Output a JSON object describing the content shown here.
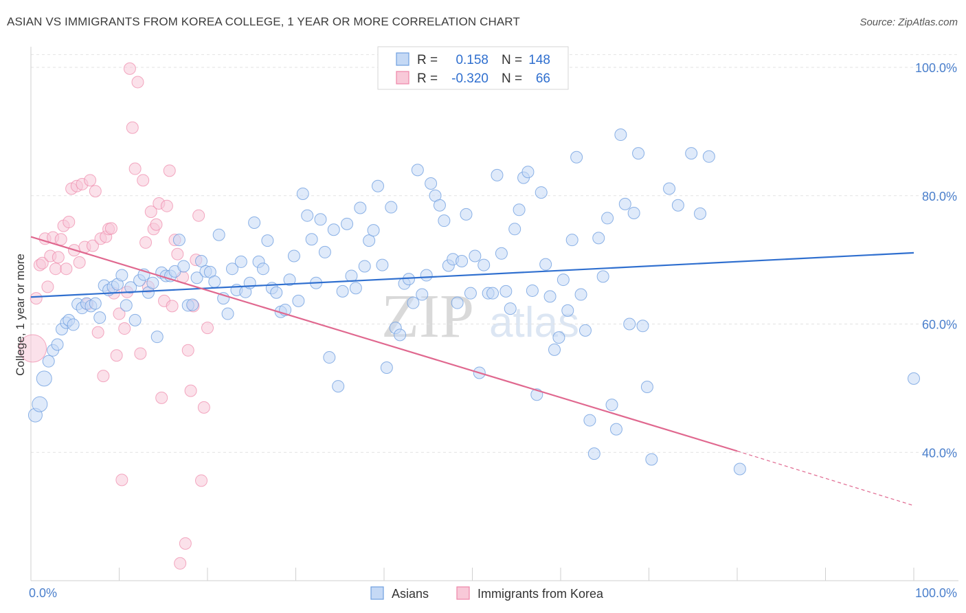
{
  "title": "ASIAN VS IMMIGRANTS FROM KOREA COLLEGE, 1 YEAR OR MORE CORRELATION CHART",
  "source": "Source: ZipAtlas.com",
  "watermark": {
    "zip": "ZIP",
    "atlas": "atlas"
  },
  "colors": {
    "asians": "#6f9fe0",
    "asians_fill": "#c5d9f5",
    "korea": "#ee86a8",
    "korea_fill": "#f8c9d8",
    "asians_line": "#2f6fcf",
    "korea_line": "#e0688f",
    "axis_text": "#4a7fcc"
  },
  "stats_legend": {
    "rows": [
      {
        "r_label": "R =",
        "r_value": "0.158",
        "n_label": "N =",
        "n_value": "148"
      },
      {
        "r_label": "R =",
        "r_value": "-0.320",
        "n_label": "N =",
        "n_value": "66"
      }
    ]
  },
  "chart_data": {
    "type": "scatter",
    "title": "ASIAN VS IMMIGRANTS FROM KOREA COLLEGE, 1 YEAR OR MORE CORRELATION CHART",
    "xlabel": "",
    "ylabel": "College, 1 year or more",
    "xlim": [
      0,
      100
    ],
    "ylim": [
      20,
      102
    ],
    "x_tick_labels": [
      "0.0%",
      "100.0%"
    ],
    "y_ticks": [
      40,
      60,
      80,
      100
    ],
    "y_tick_labels": [
      "40.0%",
      "60.0%",
      "80.0%",
      "100.0%"
    ],
    "grid": "horizontal dashed",
    "legend_position": "bottom-center",
    "series": [
      {
        "name": "Asians",
        "r": 0.158,
        "n": 148,
        "trend": {
          "x": [
            0,
            100
          ],
          "y": [
            64.2,
            71.1
          ]
        },
        "points": [
          [
            0.5,
            45.8
          ],
          [
            1,
            47.5
          ],
          [
            1.5,
            51.5
          ],
          [
            2,
            54.2
          ],
          [
            2.5,
            55.9
          ],
          [
            3,
            56.8
          ],
          [
            3.5,
            59.2
          ],
          [
            4,
            60.2
          ],
          [
            4.3,
            60.6
          ],
          [
            4.8,
            59.9
          ],
          [
            5.3,
            63.1
          ],
          [
            5.8,
            62.5
          ],
          [
            6.3,
            63.2
          ],
          [
            6.8,
            62.8
          ],
          [
            7.3,
            63.2
          ],
          [
            7.8,
            61.0
          ],
          [
            8.3,
            66.0
          ],
          [
            8.8,
            65.3
          ],
          [
            9.3,
            65.8
          ],
          [
            9.8,
            66.2
          ],
          [
            10.3,
            67.6
          ],
          [
            10.8,
            62.9
          ],
          [
            11.3,
            65.7
          ],
          [
            11.8,
            60.6
          ],
          [
            12.3,
            66.8
          ],
          [
            12.8,
            67.7
          ],
          [
            13.3,
            64.9
          ],
          [
            13.8,
            66.4
          ],
          [
            14.3,
            58.0
          ],
          [
            14.8,
            68.0
          ],
          [
            15.3,
            67.5
          ],
          [
            15.8,
            67.5
          ],
          [
            16.3,
            68.2
          ],
          [
            16.8,
            73.1
          ],
          [
            17.3,
            69.0
          ],
          [
            17.8,
            62.9
          ],
          [
            18.3,
            63.0
          ],
          [
            18.8,
            67.2
          ],
          [
            19.3,
            69.8
          ],
          [
            19.8,
            68.2
          ],
          [
            20.3,
            68.1
          ],
          [
            20.8,
            66.6
          ],
          [
            21.3,
            73.9
          ],
          [
            21.8,
            64.0
          ],
          [
            22.3,
            61.6
          ],
          [
            22.8,
            68.6
          ],
          [
            23.3,
            65.3
          ],
          [
            23.8,
            69.7
          ],
          [
            24.3,
            65.0
          ],
          [
            24.8,
            66.4
          ],
          [
            25.3,
            75.8
          ],
          [
            25.8,
            69.7
          ],
          [
            26.3,
            68.6
          ],
          [
            26.8,
            73.0
          ],
          [
            27.3,
            65.6
          ],
          [
            27.8,
            64.9
          ],
          [
            28.3,
            61.9
          ],
          [
            28.8,
            62.2
          ],
          [
            29.3,
            66.9
          ],
          [
            29.8,
            70.6
          ],
          [
            30.3,
            63.6
          ],
          [
            30.8,
            80.3
          ],
          [
            31.3,
            76.9
          ],
          [
            31.8,
            73.2
          ],
          [
            32.3,
            66.4
          ],
          [
            32.8,
            76.3
          ],
          [
            33.3,
            71.2
          ],
          [
            33.8,
            54.8
          ],
          [
            34.3,
            74.7
          ],
          [
            34.8,
            50.3
          ],
          [
            35.3,
            65.1
          ],
          [
            35.8,
            75.6
          ],
          [
            36.3,
            67.5
          ],
          [
            36.8,
            65.6
          ],
          [
            37.3,
            78.1
          ],
          [
            37.8,
            69.0
          ],
          [
            38.3,
            73.0
          ],
          [
            38.8,
            74.6
          ],
          [
            39.3,
            81.5
          ],
          [
            39.8,
            69.2
          ],
          [
            40.3,
            53.2
          ],
          [
            40.8,
            78.2
          ],
          [
            41.3,
            59.4
          ],
          [
            41.8,
            58.3
          ],
          [
            42.3,
            66.3
          ],
          [
            42.8,
            67.0
          ],
          [
            43.3,
            63.3
          ],
          [
            43.8,
            84.0
          ],
          [
            44.3,
            64.6
          ],
          [
            44.8,
            67.6
          ],
          [
            45.3,
            81.9
          ],
          [
            45.8,
            80.0
          ],
          [
            46.3,
            78.5
          ],
          [
            46.8,
            76.1
          ],
          [
            47.3,
            69.1
          ],
          [
            47.8,
            70.1
          ],
          [
            48.3,
            63.3
          ],
          [
            48.8,
            69.8
          ],
          [
            49.3,
            77.1
          ],
          [
            49.8,
            64.8
          ],
          [
            50.3,
            70.6
          ],
          [
            50.8,
            52.4
          ],
          [
            51.3,
            69.2
          ],
          [
            51.8,
            64.8
          ],
          [
            52.3,
            64.8
          ],
          [
            52.8,
            83.2
          ],
          [
            53.3,
            71.0
          ],
          [
            53.8,
            65.1
          ],
          [
            54.3,
            62.4
          ],
          [
            54.8,
            74.8
          ],
          [
            55.3,
            77.8
          ],
          [
            55.8,
            82.8
          ],
          [
            56.3,
            83.7
          ],
          [
            56.8,
            65.2
          ],
          [
            57.3,
            49.0
          ],
          [
            57.8,
            80.5
          ],
          [
            58.3,
            69.3
          ],
          [
            58.8,
            64.3
          ],
          [
            59.3,
            56.0
          ],
          [
            59.8,
            57.9
          ],
          [
            60.3,
            66.9
          ],
          [
            60.8,
            62.1
          ],
          [
            61.3,
            73.1
          ],
          [
            61.8,
            86.0
          ],
          [
            62.3,
            64.6
          ],
          [
            62.8,
            59.0
          ],
          [
            63.3,
            45.0
          ],
          [
            63.8,
            39.8
          ],
          [
            64.3,
            73.4
          ],
          [
            64.8,
            67.4
          ],
          [
            65.3,
            76.5
          ],
          [
            65.8,
            47.4
          ],
          [
            66.3,
            43.6
          ],
          [
            66.8,
            89.5
          ],
          [
            67.3,
            78.7
          ],
          [
            67.8,
            60.0
          ],
          [
            68.3,
            77.3
          ],
          [
            68.8,
            86.6
          ],
          [
            69.3,
            59.7
          ],
          [
            69.8,
            50.2
          ],
          [
            70.3,
            38.9
          ],
          [
            72.3,
            81.1
          ],
          [
            73.3,
            78.5
          ],
          [
            74.8,
            86.6
          ],
          [
            75.8,
            77.2
          ],
          [
            76.8,
            86.1
          ],
          [
            80.3,
            37.4
          ],
          [
            100,
            51.5
          ]
        ]
      },
      {
        "name": "Immigrants from Korea",
        "r": -0.32,
        "n": 66,
        "trend": {
          "x": [
            0,
            80,
            100
          ],
          "y": [
            73.6,
            40.2,
            31.7
          ]
        },
        "points": [
          [
            0.2,
            56.2
          ],
          [
            0.6,
            64.0
          ],
          [
            1,
            69.2
          ],
          [
            1.3,
            69.5
          ],
          [
            1.6,
            73.3
          ],
          [
            1.9,
            65.8
          ],
          [
            2.2,
            70.6
          ],
          [
            2.5,
            73.5
          ],
          [
            2.8,
            68.6
          ],
          [
            3.1,
            70.4
          ],
          [
            3.4,
            73.2
          ],
          [
            3.7,
            75.3
          ],
          [
            4,
            68.6
          ],
          [
            4.3,
            75.9
          ],
          [
            4.6,
            81.1
          ],
          [
            4.9,
            71.5
          ],
          [
            5.2,
            81.5
          ],
          [
            5.5,
            69.6
          ],
          [
            5.8,
            81.8
          ],
          [
            6.1,
            72.0
          ],
          [
            6.4,
            63.1
          ],
          [
            6.7,
            82.4
          ],
          [
            7,
            72.2
          ],
          [
            7.3,
            80.7
          ],
          [
            7.6,
            58.7
          ],
          [
            7.9,
            73.3
          ],
          [
            8.2,
            51.9
          ],
          [
            8.5,
            73.6
          ],
          [
            8.8,
            74.8
          ],
          [
            9.1,
            74.9
          ],
          [
            9.4,
            64.8
          ],
          [
            9.7,
            55.1
          ],
          [
            10,
            61.6
          ],
          [
            10.3,
            35.7
          ],
          [
            10.6,
            59.3
          ],
          [
            10.9,
            65.0
          ],
          [
            11.2,
            99.8
          ],
          [
            11.5,
            90.6
          ],
          [
            11.8,
            84.2
          ],
          [
            12.1,
            97.7
          ],
          [
            12.4,
            55.4
          ],
          [
            12.7,
            82.4
          ],
          [
            13,
            72.7
          ],
          [
            13.3,
            65.8
          ],
          [
            13.6,
            77.5
          ],
          [
            13.9,
            74.8
          ],
          [
            14.2,
            75.5
          ],
          [
            14.5,
            78.8
          ],
          [
            14.8,
            48.5
          ],
          [
            15.1,
            63.6
          ],
          [
            15.4,
            78.4
          ],
          [
            15.7,
            83.9
          ],
          [
            16,
            62.8
          ],
          [
            16.3,
            73.1
          ],
          [
            16.6,
            70.9
          ],
          [
            16.9,
            22.7
          ],
          [
            17.2,
            67.3
          ],
          [
            17.5,
            25.8
          ],
          [
            17.8,
            55.9
          ],
          [
            18.1,
            49.6
          ],
          [
            18.4,
            62.8
          ],
          [
            18.7,
            70.0
          ],
          [
            19,
            76.9
          ],
          [
            19.3,
            35.6
          ],
          [
            19.6,
            47.0
          ],
          [
            20,
            59.4
          ]
        ]
      }
    ]
  },
  "bottom_legend": {
    "items": [
      {
        "label": "Asians"
      },
      {
        "label": "Immigrants from Korea"
      }
    ]
  }
}
